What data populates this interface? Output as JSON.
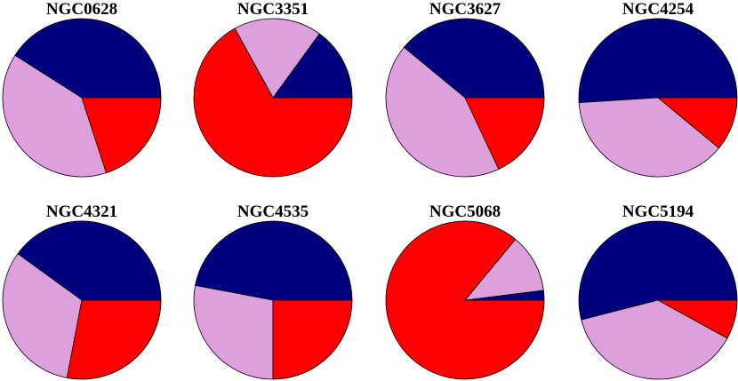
{
  "colors": {
    "navy": "#00007f",
    "plum": "#dda0dd",
    "red": "#ff0000"
  },
  "chart_data": [
    {
      "type": "pie",
      "title": "NGC0628",
      "start_angle_deg": 0,
      "slices": [
        {
          "color": "navy",
          "value": 0.41
        },
        {
          "color": "plum",
          "value": 0.39
        },
        {
          "color": "red",
          "value": 0.2
        }
      ]
    },
    {
      "type": "pie",
      "title": "NGC3351",
      "start_angle_deg": 0,
      "slices": [
        {
          "color": "navy",
          "value": 0.15
        },
        {
          "color": "plum",
          "value": 0.18
        },
        {
          "color": "red",
          "value": 0.67
        }
      ]
    },
    {
      "type": "pie",
      "title": "NGC3627",
      "start_angle_deg": 0,
      "slices": [
        {
          "color": "navy",
          "value": 0.39
        },
        {
          "color": "plum",
          "value": 0.43
        },
        {
          "color": "red",
          "value": 0.18
        }
      ]
    },
    {
      "type": "pie",
      "title": "NGC4254",
      "start_angle_deg": 0,
      "slices": [
        {
          "color": "navy",
          "value": 0.51
        },
        {
          "color": "plum",
          "value": 0.38
        },
        {
          "color": "red",
          "value": 0.11
        }
      ]
    },
    {
      "type": "pie",
      "title": "NGC4321",
      "start_angle_deg": 0,
      "slices": [
        {
          "color": "navy",
          "value": 0.4
        },
        {
          "color": "plum",
          "value": 0.32
        },
        {
          "color": "red",
          "value": 0.28
        }
      ]
    },
    {
      "type": "pie",
      "title": "NGC4535",
      "start_angle_deg": 0,
      "slices": [
        {
          "color": "navy",
          "value": 0.47
        },
        {
          "color": "plum",
          "value": 0.28
        },
        {
          "color": "red",
          "value": 0.25
        }
      ]
    },
    {
      "type": "pie",
      "title": "NGC5068",
      "start_angle_deg": 0,
      "slices": [
        {
          "color": "navy",
          "value": 0.02
        },
        {
          "color": "plum",
          "value": 0.12
        },
        {
          "color": "red",
          "value": 0.86
        }
      ]
    },
    {
      "type": "pie",
      "title": "NGC5194",
      "start_angle_deg": 0,
      "slices": [
        {
          "color": "navy",
          "value": 0.54
        },
        {
          "color": "plum",
          "value": 0.38
        },
        {
          "color": "red",
          "value": 0.08
        }
      ]
    }
  ]
}
